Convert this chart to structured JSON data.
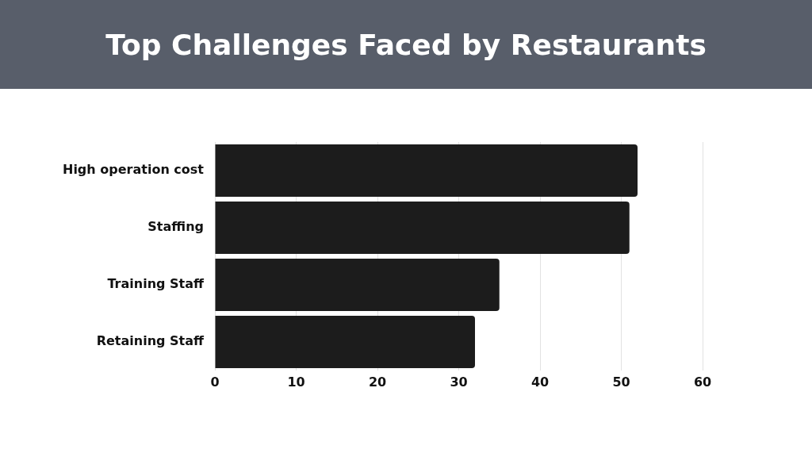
{
  "chart_data": {
    "type": "bar",
    "orientation": "horizontal",
    "title": "Top Challenges Faced by Restaurants",
    "categories": [
      "High operation cost",
      "Staffing",
      "Training Staff",
      "Retaining Staff"
    ],
    "values": [
      52,
      51,
      35,
      32
    ],
    "color": "#1c1c1c",
    "xlim": [
      0,
      60
    ],
    "xticks": [
      0,
      10,
      20,
      30,
      40,
      50,
      60
    ],
    "grid": "x",
    "legend": false
  }
}
